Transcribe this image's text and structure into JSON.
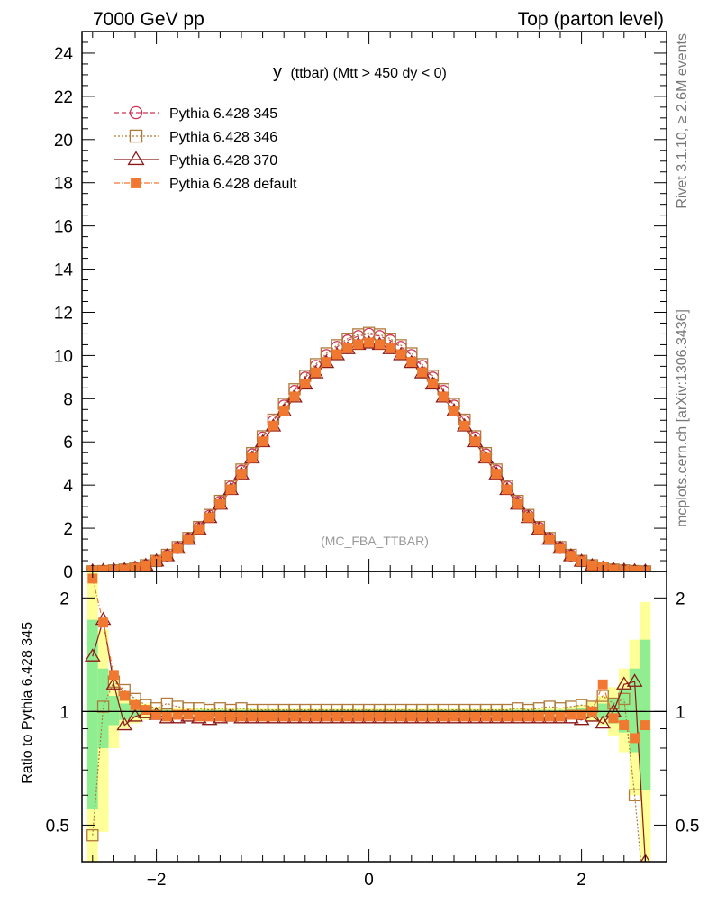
{
  "header": {
    "left": "7000 GeV pp",
    "right": "Top (parton level)"
  },
  "side_labels": {
    "rivet": "Rivet 3.1.10, ≥ 2.6M events",
    "mcplots": "mcplots.cern.ch [arXiv:1306.3436]"
  },
  "chart_data": {
    "type": "scatter",
    "title_main": "y",
    "title_sub": "(ttbar) (Mtt > 450 dy < 0)",
    "watermark": "(MC_FBA_TTBAR)",
    "ratio_ylabel": "Ratio to Pythia 6.428 345",
    "xlim": [
      -2.7,
      2.8
    ],
    "ylim": [
      0,
      25
    ],
    "ratio_ylim": [
      0.4,
      2.35
    ],
    "x_ticks": [
      -2,
      0,
      2
    ],
    "x_tick_labels": [
      "−2",
      "0",
      "2"
    ],
    "y_ticks": [
      0,
      2,
      4,
      6,
      8,
      10,
      12,
      14,
      16,
      18,
      20,
      22,
      24
    ],
    "ratio_ticks": [
      0.5,
      1,
      2
    ],
    "ratio_tick_labels": [
      "0.5",
      "1",
      "2"
    ],
    "legend_position": "top-left",
    "x": [
      -2.6,
      -2.5,
      -2.4,
      -2.3,
      -2.2,
      -2.1,
      -2.0,
      -1.9,
      -1.8,
      -1.7,
      -1.6,
      -1.5,
      -1.4,
      -1.3,
      -1.2,
      -1.1,
      -1.0,
      -0.9,
      -0.8,
      -0.7,
      -0.6,
      -0.5,
      -0.4,
      -0.3,
      -0.2,
      -0.1,
      0.0,
      0.1,
      0.2,
      0.3,
      0.4,
      0.5,
      0.6,
      0.7,
      0.8,
      0.9,
      1.0,
      1.1,
      1.2,
      1.3,
      1.4,
      1.5,
      1.6,
      1.7,
      1.8,
      1.9,
      2.0,
      2.1,
      2.2,
      2.3,
      2.4,
      2.5,
      2.6
    ],
    "series": [
      {
        "name": "Pythia 6.428 345",
        "color": "#cc3355",
        "marker": "circle",
        "dash": "5,3",
        "values": [
          0.01,
          0.02,
          0.04,
          0.08,
          0.16,
          0.28,
          0.48,
          0.74,
          1.1,
          1.52,
          2.02,
          2.58,
          3.22,
          3.92,
          4.66,
          5.42,
          6.2,
          6.96,
          7.68,
          8.36,
          8.98,
          9.52,
          10.02,
          10.4,
          10.7,
          10.9,
          11.0,
          10.9,
          10.7,
          10.4,
          10.02,
          9.52,
          8.98,
          8.36,
          7.68,
          6.96,
          6.2,
          5.42,
          4.66,
          3.92,
          3.22,
          2.58,
          2.02,
          1.52,
          1.1,
          0.74,
          0.48,
          0.28,
          0.16,
          0.08,
          0.04,
          0.02,
          0.01
        ],
        "ratio": [
          1.0,
          1.0,
          1.0,
          1.0,
          1.0,
          1.0,
          1.0,
          1.0,
          1.0,
          1.0,
          1.0,
          1.0,
          1.0,
          1.0,
          1.0,
          1.0,
          1.0,
          1.0,
          1.0,
          1.0,
          1.0,
          1.0,
          1.0,
          1.0,
          1.0,
          1.0,
          1.0,
          1.0,
          1.0,
          1.0,
          1.0,
          1.0,
          1.0,
          1.0,
          1.0,
          1.0,
          1.0,
          1.0,
          1.0,
          1.0,
          1.0,
          1.0,
          1.0,
          1.0,
          1.0,
          1.0,
          1.0,
          1.0,
          1.0,
          1.0,
          1.0,
          1.0,
          1.0
        ]
      },
      {
        "name": "Pythia 6.428 346",
        "color": "#b07a3a",
        "marker": "square",
        "dash": "2,2",
        "values": [
          0.005,
          0.02,
          0.05,
          0.09,
          0.17,
          0.29,
          0.49,
          0.77,
          1.13,
          1.55,
          2.06,
          2.62,
          3.27,
          3.96,
          4.72,
          5.48,
          6.26,
          7.03,
          7.76,
          8.44,
          9.06,
          9.6,
          10.1,
          10.48,
          10.78,
          10.98,
          11.05,
          10.98,
          10.78,
          10.48,
          10.1,
          9.6,
          9.06,
          8.44,
          7.76,
          7.03,
          6.26,
          5.48,
          4.72,
          3.96,
          3.27,
          2.62,
          2.06,
          1.55,
          1.13,
          0.77,
          0.49,
          0.29,
          0.17,
          0.09,
          0.05,
          0.02,
          0.004
        ],
        "ratio": [
          0.47,
          1.03,
          1.2,
          1.14,
          1.08,
          1.04,
          1.02,
          1.05,
          1.03,
          1.02,
          1.02,
          1.01,
          1.02,
          1.01,
          1.02,
          1.01,
          1.01,
          1.01,
          1.01,
          1.01,
          1.01,
          1.01,
          1.01,
          1.01,
          1.01,
          1.01,
          1.01,
          1.01,
          1.01,
          1.01,
          1.01,
          1.01,
          1.01,
          1.01,
          1.01,
          1.01,
          1.01,
          1.01,
          1.01,
          1.01,
          1.02,
          1.01,
          1.02,
          1.03,
          1.02,
          1.03,
          1.04,
          1.03,
          1.1,
          1.05,
          1.08,
          0.6,
          0.3
        ]
      },
      {
        "name": "Pythia 6.428 370",
        "color": "#8b1a1a",
        "marker": "triangle",
        "dash": "",
        "values": [
          0.014,
          0.035,
          0.05,
          0.07,
          0.15,
          0.27,
          0.47,
          0.71,
          1.06,
          1.47,
          1.94,
          2.48,
          3.1,
          3.78,
          4.5,
          5.24,
          5.99,
          6.72,
          7.42,
          8.06,
          8.66,
          9.18,
          9.66,
          10.02,
          10.3,
          10.5,
          10.56,
          10.5,
          10.3,
          10.02,
          9.66,
          9.18,
          8.66,
          8.06,
          7.42,
          6.72,
          5.99,
          5.24,
          4.5,
          3.78,
          3.1,
          2.48,
          1.94,
          1.47,
          1.06,
          0.71,
          0.46,
          0.26,
          0.15,
          0.09,
          0.05,
          0.02,
          0.005
        ],
        "ratio": [
          1.4,
          1.75,
          1.18,
          0.92,
          0.97,
          0.99,
          0.98,
          0.96,
          0.96,
          0.97,
          0.96,
          0.95,
          0.96,
          0.97,
          0.96,
          0.96,
          0.96,
          0.96,
          0.96,
          0.96,
          0.96,
          0.96,
          0.96,
          0.96,
          0.96,
          0.96,
          0.96,
          0.96,
          0.96,
          0.96,
          0.96,
          0.96,
          0.96,
          0.96,
          0.96,
          0.96,
          0.96,
          0.96,
          0.96,
          0.96,
          0.96,
          0.96,
          0.96,
          0.96,
          0.96,
          0.96,
          0.95,
          0.97,
          0.93,
          1.0,
          1.18,
          1.2,
          0.4
        ]
      },
      {
        "name": "Pythia 6.428 default",
        "color": "#f07830",
        "marker": "filled-square",
        "dash": "6,2,1,2",
        "values": [
          0.023,
          0.035,
          0.05,
          0.08,
          0.16,
          0.27,
          0.47,
          0.72,
          1.07,
          1.48,
          1.96,
          2.5,
          3.12,
          3.8,
          4.52,
          5.26,
          6.02,
          6.75,
          7.45,
          8.1,
          8.7,
          9.22,
          9.7,
          10.06,
          10.34,
          10.52,
          10.6,
          10.52,
          10.34,
          10.06,
          9.7,
          9.22,
          8.7,
          8.1,
          7.45,
          6.75,
          6.02,
          5.26,
          4.52,
          3.8,
          3.12,
          2.5,
          1.96,
          1.48,
          1.07,
          0.72,
          0.47,
          0.28,
          0.19,
          0.08,
          0.04,
          0.02,
          0.01
        ],
        "ratio": [
          2.25,
          1.72,
          1.25,
          1.1,
          1.04,
          1.01,
          0.98,
          0.97,
          0.98,
          0.98,
          0.97,
          0.97,
          0.97,
          0.97,
          0.97,
          0.97,
          0.97,
          0.97,
          0.97,
          0.97,
          0.97,
          0.97,
          0.97,
          0.97,
          0.97,
          0.97,
          0.97,
          0.97,
          0.97,
          0.97,
          0.97,
          0.97,
          0.97,
          0.97,
          0.97,
          0.97,
          0.97,
          0.97,
          0.97,
          0.97,
          0.97,
          0.97,
          0.97,
          0.97,
          0.97,
          0.98,
          0.98,
          1.0,
          1.18,
          0.96,
          0.92,
          0.85,
          0.92
        ]
      }
    ],
    "ratio_bands": {
      "green": {
        "color": "#90ee90",
        "lo": [
          0.55,
          0.8,
          0.92,
          0.95,
          0.97,
          0.98,
          0.985,
          0.99,
          0.99,
          0.99,
          0.99,
          0.99,
          0.99,
          0.99,
          0.99,
          0.99,
          0.99,
          0.99,
          0.99,
          0.99,
          0.99,
          0.99,
          0.99,
          0.99,
          0.99,
          0.99,
          0.99,
          0.99,
          0.99,
          0.99,
          0.99,
          0.99,
          0.99,
          0.99,
          0.99,
          0.99,
          0.99,
          0.99,
          0.99,
          0.99,
          0.99,
          0.99,
          0.99,
          0.99,
          0.99,
          0.985,
          0.98,
          0.97,
          0.96,
          0.93,
          0.88,
          0.78,
          0.62
        ],
        "hi": [
          1.75,
          1.3,
          1.1,
          1.05,
          1.03,
          1.02,
          1.015,
          1.01,
          1.01,
          1.01,
          1.01,
          1.01,
          1.01,
          1.01,
          1.01,
          1.01,
          1.01,
          1.01,
          1.01,
          1.01,
          1.01,
          1.01,
          1.01,
          1.01,
          1.01,
          1.01,
          1.01,
          1.01,
          1.01,
          1.01,
          1.01,
          1.01,
          1.01,
          1.01,
          1.01,
          1.01,
          1.01,
          1.01,
          1.01,
          1.01,
          1.01,
          1.01,
          1.01,
          1.01,
          1.01,
          1.015,
          1.02,
          1.03,
          1.05,
          1.08,
          1.15,
          1.3,
          1.55
        ]
      },
      "yellow": {
        "color": "#ffff99",
        "lo": [
          0.4,
          0.48,
          0.8,
          0.9,
          0.93,
          0.95,
          0.97,
          0.98,
          0.98,
          0.98,
          0.98,
          0.98,
          0.98,
          0.98,
          0.98,
          0.98,
          0.98,
          0.98,
          0.98,
          0.98,
          0.98,
          0.98,
          0.98,
          0.98,
          0.98,
          0.98,
          0.98,
          0.98,
          0.98,
          0.98,
          0.98,
          0.98,
          0.98,
          0.98,
          0.98,
          0.98,
          0.98,
          0.98,
          0.98,
          0.98,
          0.98,
          0.98,
          0.98,
          0.98,
          0.98,
          0.97,
          0.96,
          0.94,
          0.92,
          0.86,
          0.78,
          0.6,
          0.4
        ],
        "hi": [
          2.35,
          1.65,
          1.25,
          1.12,
          1.08,
          1.05,
          1.03,
          1.02,
          1.02,
          1.02,
          1.02,
          1.02,
          1.02,
          1.02,
          1.02,
          1.02,
          1.02,
          1.02,
          1.02,
          1.02,
          1.02,
          1.02,
          1.02,
          1.02,
          1.02,
          1.02,
          1.02,
          1.02,
          1.02,
          1.02,
          1.02,
          1.02,
          1.02,
          1.02,
          1.02,
          1.02,
          1.02,
          1.02,
          1.02,
          1.02,
          1.02,
          1.02,
          1.02,
          1.02,
          1.02,
          1.03,
          1.04,
          1.06,
          1.1,
          1.16,
          1.3,
          1.55,
          1.95
        ]
      }
    }
  }
}
